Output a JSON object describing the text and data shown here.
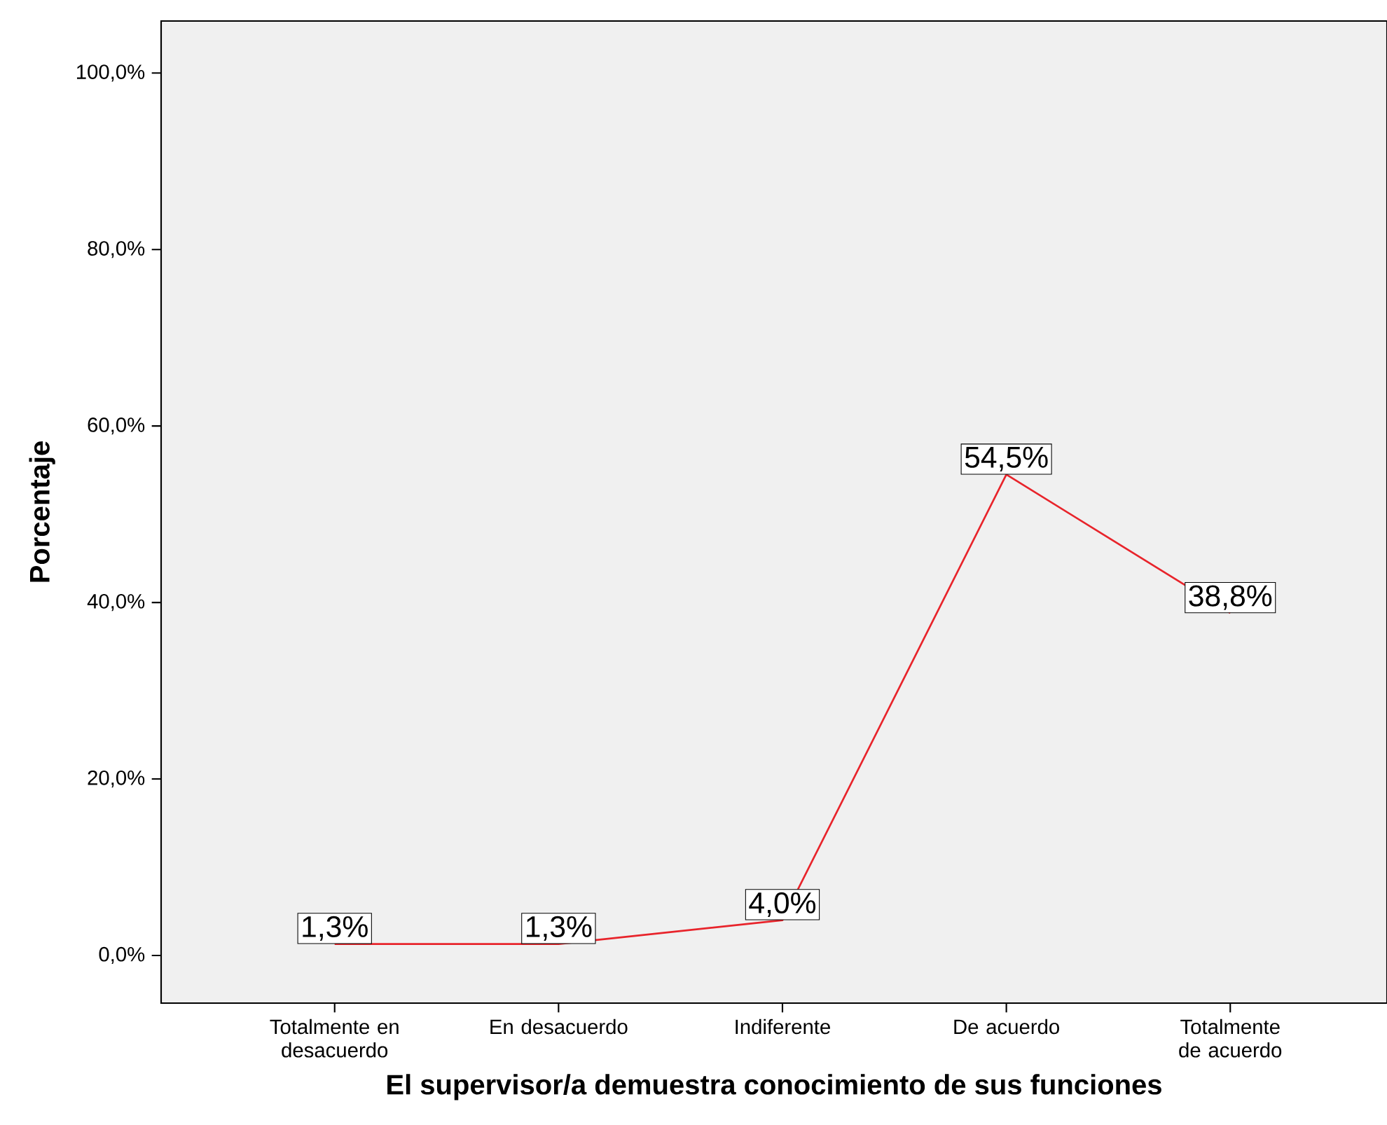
{
  "chart_data": {
    "type": "line",
    "xlabel": "El supervisor/a demuestra conocimiento de sus funciones",
    "ylabel": "Porcentaje",
    "categories": [
      "Totalmente en desacuerdo",
      "En desacuerdo",
      "Indiferente",
      "De acuerdo",
      "Totalmente de acuerdo"
    ],
    "series": [
      {
        "color": "#e8242b",
        "values": [
          1.3,
          1.3,
          4.0,
          54.5,
          38.8
        ],
        "value_labels": [
          "1,3%",
          "1,3%",
          "4,0%",
          "54,5%",
          "38,8%"
        ]
      }
    ],
    "ylim": [
      -5.4,
      105.9
    ],
    "yticks": [
      {
        "value": 0,
        "label": "0,0%"
      },
      {
        "value": 20,
        "label": "20,0%"
      },
      {
        "value": 40,
        "label": "40,0%"
      },
      {
        "value": 60,
        "label": "60,0%"
      },
      {
        "value": 80,
        "label": "80,0%"
      },
      {
        "value": 100,
        "label": "100,0%"
      }
    ],
    "grid": false,
    "marker": "none",
    "line_style": "solid"
  }
}
